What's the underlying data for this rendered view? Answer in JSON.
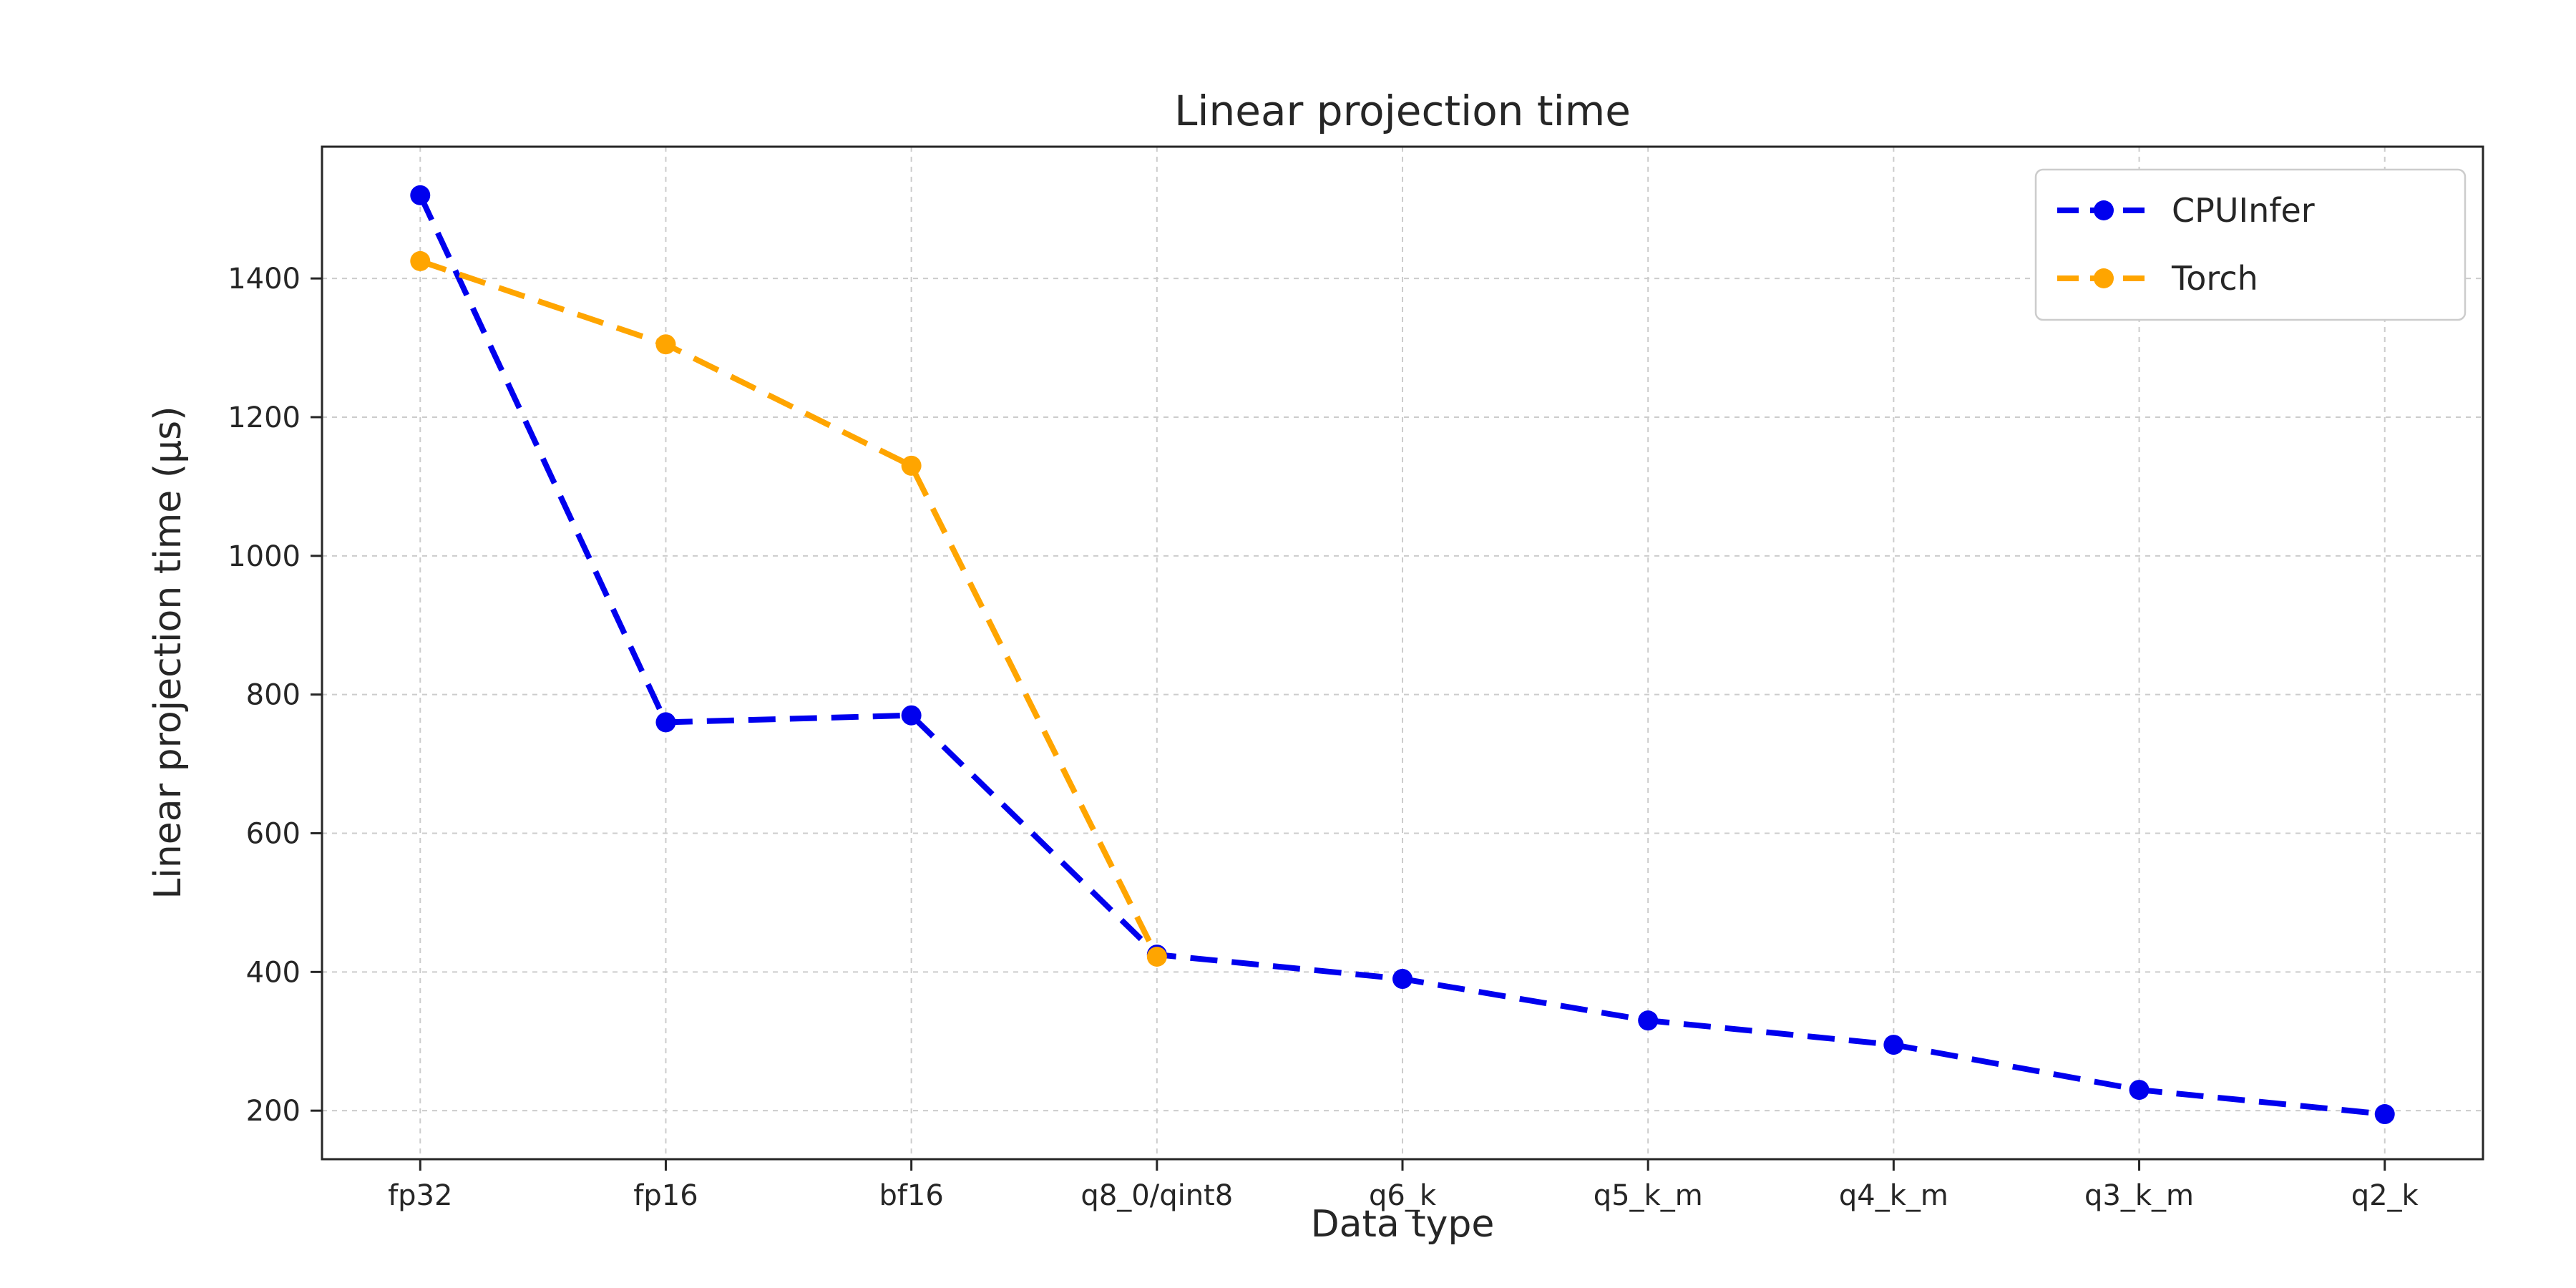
{
  "chart_data": {
    "type": "line",
    "title": "Linear projection time",
    "xlabel": "Data type",
    "ylabel": "Linear projection time (µs)",
    "categories": [
      "fp32",
      "fp16",
      "bf16",
      "q8_0/qint8",
      "q6_k",
      "q5_k_m",
      "q4_k_m",
      "q3_k_m",
      "q2_k"
    ],
    "series": [
      {
        "name": "CPUInfer",
        "color": "#0000ee",
        "marker": "circle",
        "linestyle": "dashed",
        "values": [
          1520,
          760,
          770,
          425,
          390,
          330,
          295,
          230,
          195
        ]
      },
      {
        "name": "Torch",
        "color": "#ffa500",
        "marker": "circle",
        "linestyle": "dashed",
        "values": [
          1425,
          1305,
          1130,
          422,
          null,
          null,
          null,
          null,
          null
        ]
      }
    ],
    "yticks": [
      200,
      400,
      600,
      800,
      1000,
      1200,
      1400
    ],
    "ylim": [
      130,
      1590
    ],
    "grid": true,
    "legend_position": "upper right"
  }
}
